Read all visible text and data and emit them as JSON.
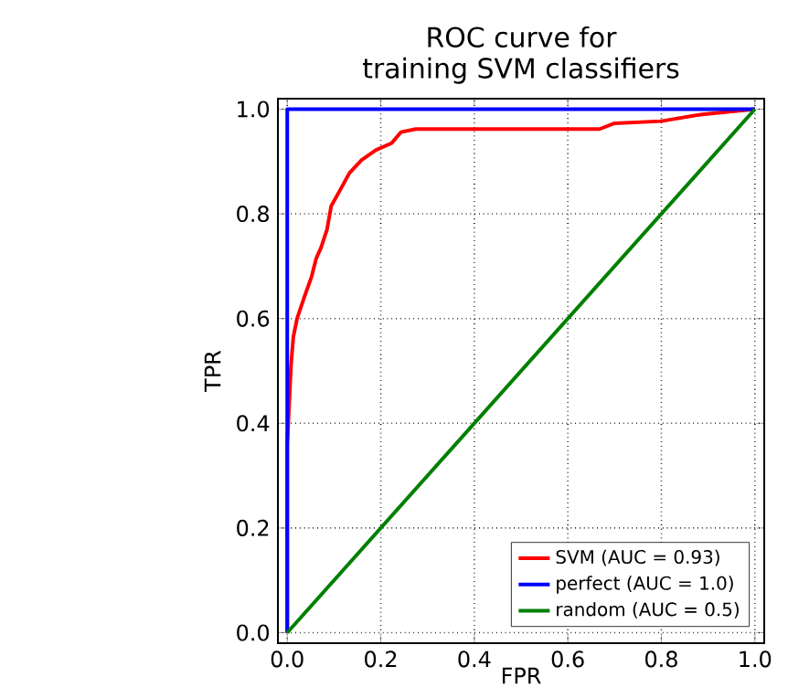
{
  "chart_data": {
    "type": "line",
    "title": "ROC curve for\ntraining SVM classifiers",
    "xlabel": "FPR",
    "ylabel": "TPR",
    "xlim": [
      -0.02,
      1.02
    ],
    "ylim": [
      -0.02,
      1.02
    ],
    "xticks": [
      {
        "value": 0,
        "label": "0.0"
      },
      {
        "value": 0.2,
        "label": "0.2"
      },
      {
        "value": 0.4,
        "label": "0.4"
      },
      {
        "value": 0.6,
        "label": "0.6"
      },
      {
        "value": 0.8,
        "label": "0.8"
      },
      {
        "value": 1,
        "label": "1.0"
      }
    ],
    "yticks": [
      {
        "value": 0,
        "label": "0.0"
      },
      {
        "value": 0.2,
        "label": "0.2"
      },
      {
        "value": 0.4,
        "label": "0.4"
      },
      {
        "value": 0.6,
        "label": "0.6"
      },
      {
        "value": 0.8,
        "label": "0.8"
      },
      {
        "value": 1,
        "label": "1.0"
      }
    ],
    "grid": true,
    "legend": "bottom right",
    "marker": "none",
    "line_style": "solid",
    "series": [
      {
        "name": "SVM (AUC = 0.93)",
        "color": "#ff0000",
        "x": [
          0,
          0,
          0.008,
          0.013,
          0.021,
          0.036,
          0.052,
          0.062,
          0.072,
          0.085,
          0.094,
          0.114,
          0.133,
          0.159,
          0.19,
          0.223,
          0.243,
          0.275,
          0.4,
          0.55,
          0.668,
          0.7,
          0.8,
          0.887,
          1
        ],
        "values": [
          0,
          0.36,
          0.51,
          0.565,
          0.6,
          0.64,
          0.68,
          0.715,
          0.735,
          0.77,
          0.815,
          0.847,
          0.878,
          0.903,
          0.922,
          0.935,
          0.956,
          0.962,
          0.962,
          0.962,
          0.962,
          0.973,
          0.977,
          0.99,
          1
        ]
      },
      {
        "name": "perfect (AUC = 1.0)",
        "color": "#0000ff",
        "x": [
          0,
          0,
          1
        ],
        "values": [
          0,
          1,
          1
        ]
      },
      {
        "name": "random (AUC = 0.5)",
        "color": "#008000",
        "x": [
          0,
          1
        ],
        "values": [
          0,
          1
        ]
      }
    ]
  }
}
